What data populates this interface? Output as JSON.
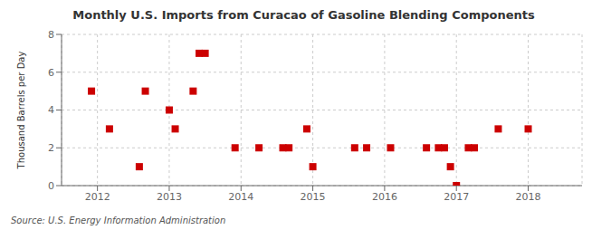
{
  "chart_data": {
    "type": "scatter",
    "title": "Monthly U.S. Imports from Curacao of Gasoline Blending Components",
    "y_label": "Thousand Barrels per Day",
    "source": "Source: U.S. Energy Information Administration",
    "x": [
      2011.917,
      2012.167,
      2012.583,
      2012.667,
      2013.0,
      2013.083,
      2013.333,
      2013.417,
      2013.5,
      2013.917,
      2014.25,
      2014.583,
      2014.667,
      2014.917,
      2015.0,
      2015.583,
      2015.75,
      2016.083,
      2016.583,
      2016.75,
      2016.833,
      2016.917,
      2017.0,
      2017.167,
      2017.25,
      2017.583,
      2018.0
    ],
    "values": [
      5,
      3,
      1,
      5,
      4,
      3,
      5,
      7,
      7,
      2,
      2,
      2,
      2,
      3,
      1,
      2,
      2,
      2,
      2,
      2,
      2,
      1,
      0,
      2,
      2,
      3,
      3
    ],
    "xlim": [
      2011.5,
      2018.75
    ],
    "xticks": [
      2012,
      2013,
      2014,
      2015,
      2016,
      2017,
      2018
    ],
    "ylim": [
      0,
      8
    ],
    "yticks": [
      0,
      2,
      4,
      6,
      8
    ],
    "color": "#cc0000",
    "marker": "square",
    "grid": true
  }
}
